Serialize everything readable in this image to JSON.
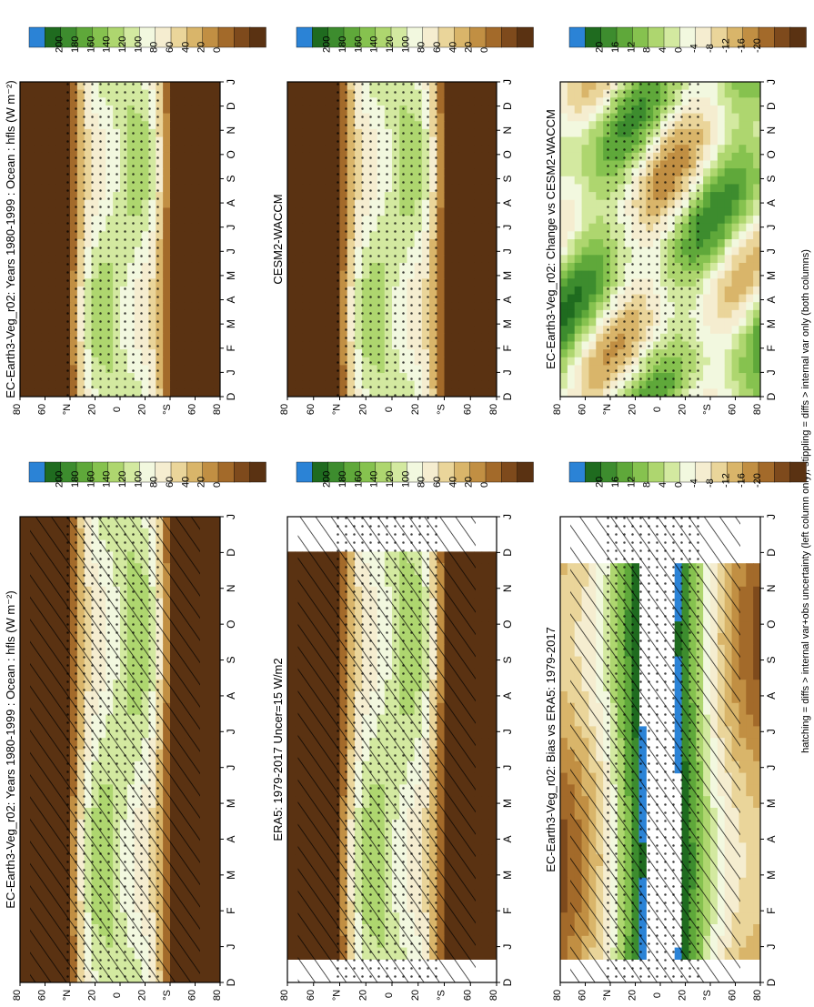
{
  "figure": {
    "footnote": "hatching = diffs > internal var+obs uncertainty (left column only); stippling = diffs > internal var only (both columns)"
  },
  "chart_data": [
    {
      "type": "heatmap",
      "panel_id": "model-climatology-left",
      "title": "EC-Earth3-Veg_r02: Years 1980-1999 : Ocean : hfls (W m⁻²)",
      "x_ticks": [
        "D",
        "J",
        "F",
        "M",
        "A",
        "M",
        "J",
        "J",
        "A",
        "S",
        "O",
        "N",
        "D",
        "J"
      ],
      "y_ticks": [
        "80",
        "60",
        "°N",
        "20",
        "0",
        "20",
        "°S",
        "60",
        "80"
      ],
      "colorbar_labels": [
        "200",
        "180",
        "160",
        "140",
        "120",
        "100",
        "80",
        "60",
        "40",
        "20",
        "0"
      ],
      "colorbar_colors": [
        "#2b83d6",
        "#1f6b1f",
        "#3d8c2e",
        "#5fa83a",
        "#86c24f",
        "#aed66f",
        "#d3e9a0",
        "#f2f8df",
        "#f5edd0",
        "#ead59a",
        "#d9b56a",
        "#c18f43",
        "#a36a2a",
        "#7e4a1c",
        "#5a3212"
      ],
      "hatching": true,
      "stippling": true
    },
    {
      "type": "heatmap",
      "panel_id": "obs-left",
      "title": "ERA5: 1979-2017 Uncer=15 W/m2",
      "x_ticks": [
        "D",
        "J",
        "F",
        "M",
        "A",
        "M",
        "J",
        "J",
        "A",
        "S",
        "O",
        "N",
        "D",
        "J"
      ],
      "y_ticks": [
        "80",
        "60",
        "°N",
        "20",
        "0",
        "20",
        "°S",
        "60",
        "80"
      ],
      "colorbar_labels": [
        "200",
        "180",
        "160",
        "140",
        "120",
        "100",
        "80",
        "60",
        "40",
        "20",
        "0"
      ],
      "colorbar_colors": [
        "#2b83d6",
        "#1f6b1f",
        "#3d8c2e",
        "#5fa83a",
        "#86c24f",
        "#aed66f",
        "#d3e9a0",
        "#f2f8df",
        "#f5edd0",
        "#ead59a",
        "#d9b56a",
        "#c18f43",
        "#a36a2a",
        "#7e4a1c",
        "#5a3212"
      ],
      "hatching": true,
      "stippling": true
    },
    {
      "type": "heatmap",
      "panel_id": "bias-left",
      "title": "EC-Earth3-Veg_r02: Bias vs ERA5: 1979-2017",
      "x_ticks": [
        "D",
        "J",
        "F",
        "M",
        "A",
        "M",
        "J",
        "J",
        "A",
        "S",
        "O",
        "N",
        "D",
        "J"
      ],
      "y_ticks": [
        "80",
        "60",
        "°N",
        "20",
        "0",
        "20",
        "°S",
        "60",
        "80"
      ],
      "colorbar_labels": [
        "20",
        "16",
        "12",
        "8",
        "4",
        "0",
        "-4",
        "-8",
        "-12",
        "-16",
        "-20"
      ],
      "colorbar_colors": [
        "#2b83d6",
        "#1f6b1f",
        "#3d8c2e",
        "#5fa83a",
        "#86c24f",
        "#aed66f",
        "#d3e9a0",
        "#f2f8df",
        "#f5edd0",
        "#ead59a",
        "#d9b56a",
        "#c18f43",
        "#a36a2a",
        "#7e4a1c",
        "#5a3212"
      ],
      "hatching": true,
      "stippling": true
    },
    {
      "type": "heatmap",
      "panel_id": "model-climatology-right",
      "title": "EC-Earth3-Veg_r02: Years 1980-1999 : Ocean : hfls (W m⁻²)",
      "x_ticks": [
        "D",
        "J",
        "F",
        "M",
        "A",
        "M",
        "J",
        "J",
        "A",
        "S",
        "O",
        "N",
        "D",
        "J"
      ],
      "y_ticks": [
        "80",
        "60",
        "°N",
        "20",
        "0",
        "20",
        "°S",
        "60",
        "80"
      ],
      "colorbar_labels": [
        "200",
        "180",
        "160",
        "140",
        "120",
        "100",
        "80",
        "60",
        "40",
        "20",
        "0"
      ],
      "colorbar_colors": [
        "#2b83d6",
        "#1f6b1f",
        "#3d8c2e",
        "#5fa83a",
        "#86c24f",
        "#aed66f",
        "#d3e9a0",
        "#f2f8df",
        "#f5edd0",
        "#ead59a",
        "#d9b56a",
        "#c18f43",
        "#a36a2a",
        "#7e4a1c",
        "#5a3212"
      ],
      "hatching": false,
      "stippling": true
    },
    {
      "type": "heatmap",
      "panel_id": "comparison-model-right",
      "title": "CESM2-WACCM",
      "x_ticks": [
        "D",
        "J",
        "F",
        "M",
        "A",
        "M",
        "J",
        "J",
        "A",
        "S",
        "O",
        "N",
        "D",
        "J"
      ],
      "y_ticks": [
        "80",
        "60",
        "°N",
        "20",
        "0",
        "20",
        "°S",
        "60",
        "80"
      ],
      "colorbar_labels": [
        "200",
        "180",
        "160",
        "140",
        "120",
        "100",
        "80",
        "60",
        "40",
        "20",
        "0"
      ],
      "colorbar_colors": [
        "#2b83d6",
        "#1f6b1f",
        "#3d8c2e",
        "#5fa83a",
        "#86c24f",
        "#aed66f",
        "#d3e9a0",
        "#f2f8df",
        "#f5edd0",
        "#ead59a",
        "#d9b56a",
        "#c18f43",
        "#a36a2a",
        "#7e4a1c",
        "#5a3212"
      ],
      "hatching": false,
      "stippling": true
    },
    {
      "type": "heatmap",
      "panel_id": "change-right",
      "title": "EC-Earth3-Veg_r02: Change vs CESM2-WACCM",
      "x_ticks": [
        "D",
        "J",
        "F",
        "M",
        "A",
        "M",
        "J",
        "J",
        "A",
        "S",
        "O",
        "N",
        "D",
        "J"
      ],
      "y_ticks": [
        "80",
        "60",
        "°N",
        "20",
        "0",
        "20",
        "°S",
        "60",
        "80"
      ],
      "colorbar_labels": [
        "20",
        "16",
        "12",
        "8",
        "4",
        "0",
        "-4",
        "-8",
        "-12",
        "-16",
        "-20"
      ],
      "colorbar_colors": [
        "#2b83d6",
        "#1f6b1f",
        "#3d8c2e",
        "#5fa83a",
        "#86c24f",
        "#aed66f",
        "#d3e9a0",
        "#f2f8df",
        "#f5edd0",
        "#ead59a",
        "#d9b56a",
        "#c18f43",
        "#a36a2a",
        "#7e4a1c",
        "#5a3212"
      ],
      "hatching": false,
      "stippling": true
    }
  ]
}
